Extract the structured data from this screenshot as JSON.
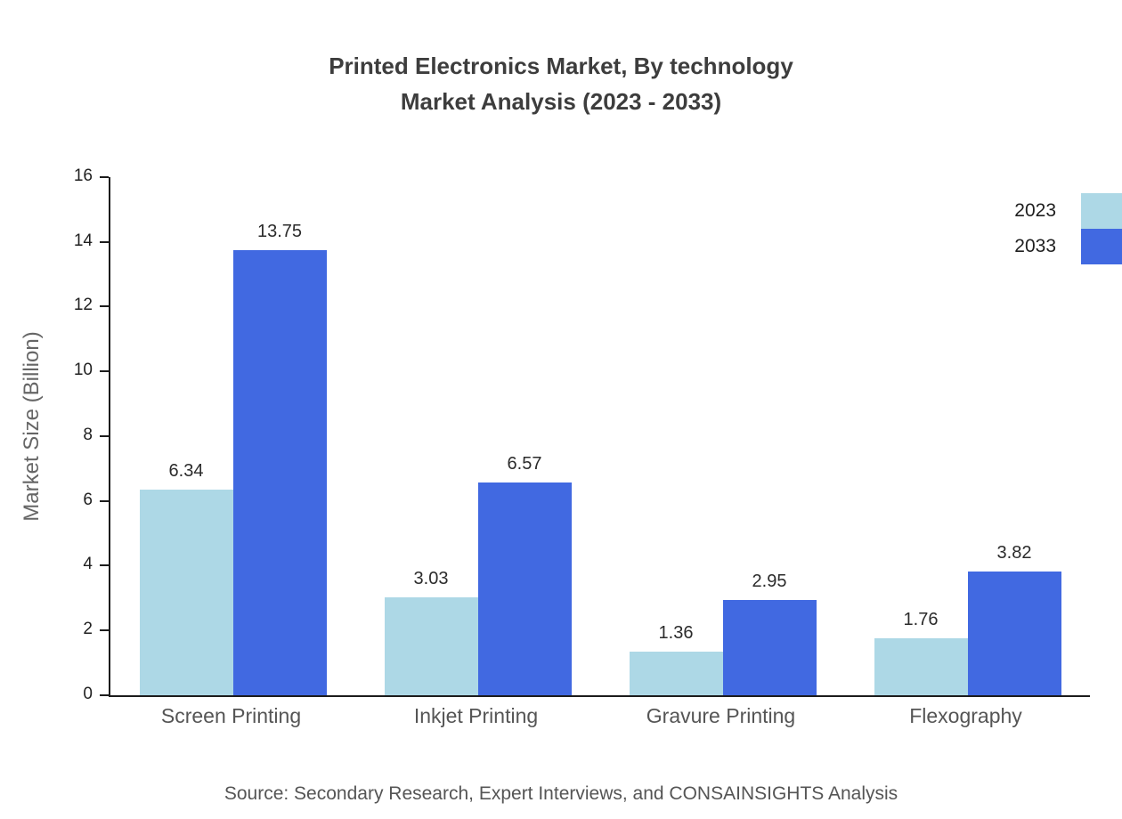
{
  "title": {
    "line1": "Printed Electronics Market, By technology",
    "line2": "Market Analysis (2023 - 2033)"
  },
  "source": "Source: Secondary Research, Expert Interviews, and CONSAINSIGHTS Analysis",
  "chart_data": {
    "type": "bar",
    "title": "Printed Electronics Market, By technology Market Analysis (2023 - 2033)",
    "categories": [
      "Screen Printing",
      "Inkjet Printing",
      "Gravure Printing",
      "Flexography"
    ],
    "series": [
      {
        "name": "2023",
        "color": "#add8e6",
        "values": [
          6.34,
          3.03,
          1.36,
          1.76
        ]
      },
      {
        "name": "2033",
        "color": "#4169e1",
        "values": [
          13.75,
          6.57,
          2.95,
          3.82
        ]
      }
    ],
    "xlabel": "",
    "ylabel": "Market Size (Billion)",
    "ylim": [
      0,
      16
    ],
    "yticks": [
      0,
      2,
      4,
      6,
      8,
      10,
      12,
      14,
      16
    ],
    "grid": false,
    "legend_position": "top-right"
  }
}
